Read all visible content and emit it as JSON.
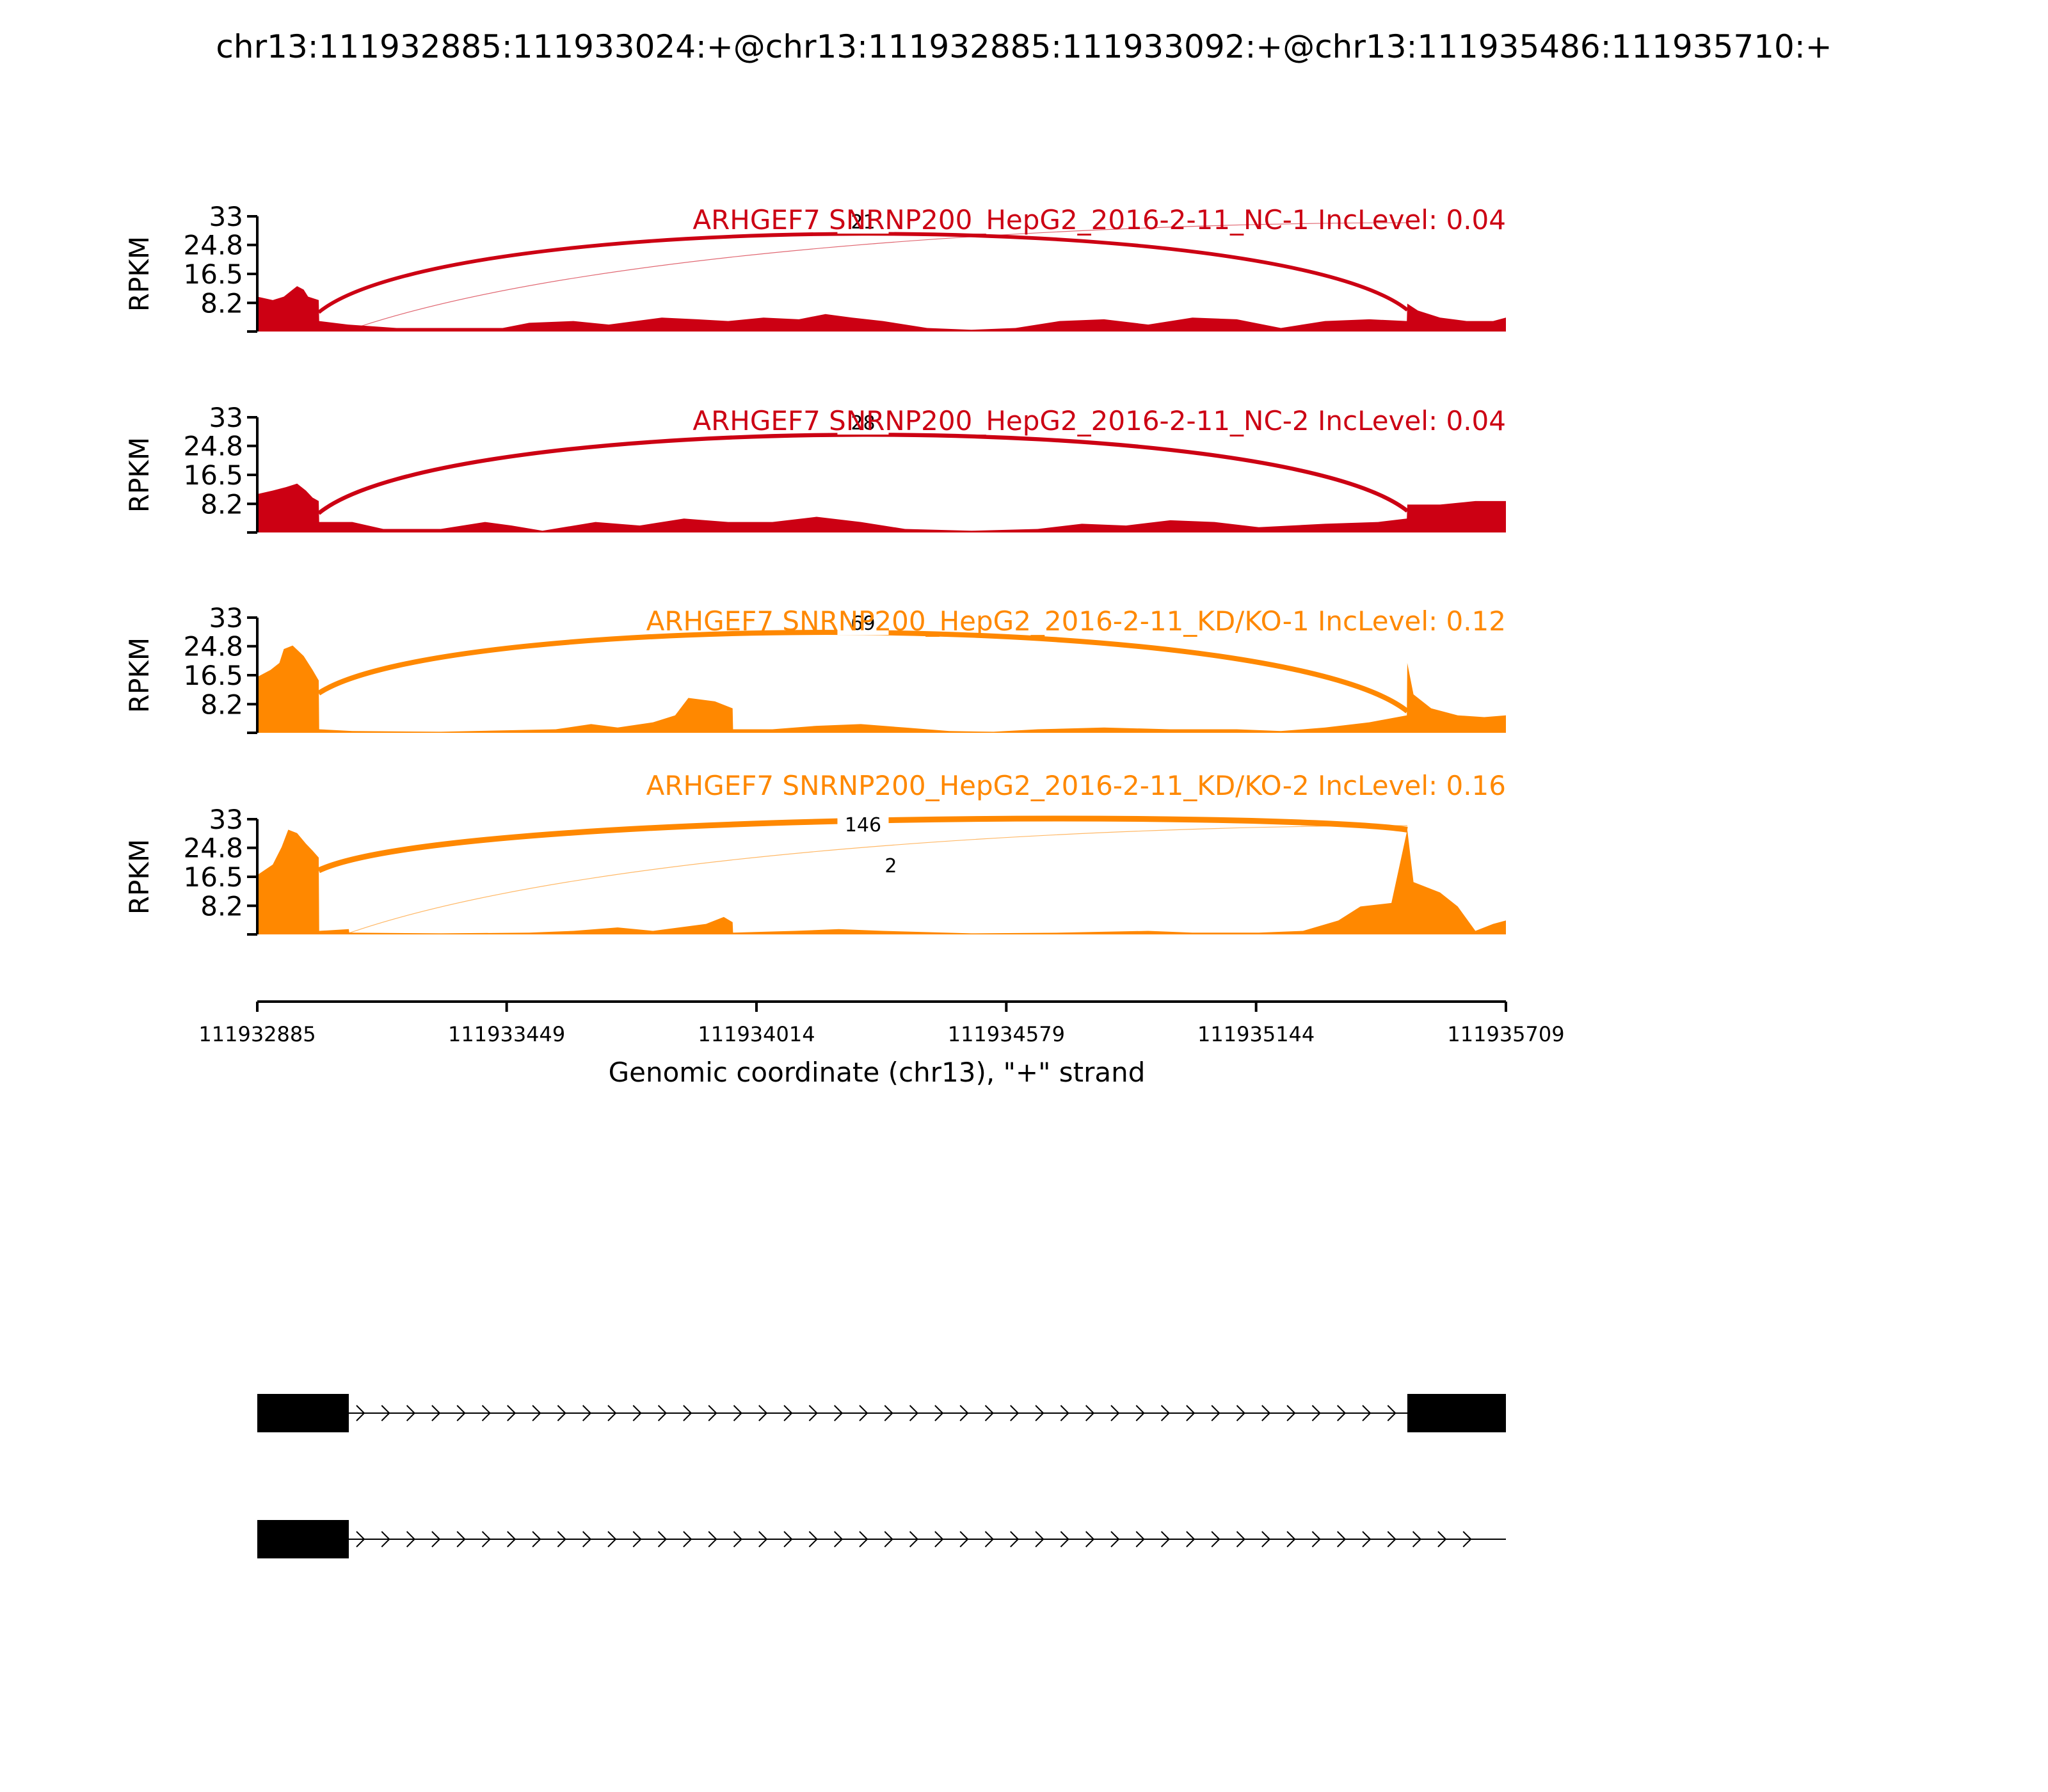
{
  "figure_title": "chr13:111932885:111933024:+@chr13:111932885:111933092:+@chr13:111935486:111935710:+",
  "chart_data": {
    "type": "area",
    "title": "chr13:111932885:111933024:+@chr13:111932885:111933092:+@chr13:111935486:111935710:+",
    "xlabel": "Genomic coordinate (chr13), \"+\" strand",
    "ylabel": "RPKM",
    "xlim": [
      111932885,
      111935709
    ],
    "x_ticks": [
      111932885,
      111933449,
      111934014,
      111934579,
      111935144,
      111935709
    ],
    "ylim": [
      0,
      33
    ],
    "y_ticks": [
      8.2,
      16.5,
      24.8,
      33
    ],
    "y_tick_labels": [
      "8.2",
      "16.5",
      "24.8",
      "33"
    ],
    "grid": false,
    "colors": {
      "NC": "#cc0013",
      "KD": "#ff8800"
    },
    "series": [
      {
        "name": "ARHGEF7 SNRNP200_HepG2_2016-2-11_NC-1 IncLevel: 0.04",
        "color": "#cc0013",
        "coverage": [
          [
            111932885,
            10
          ],
          [
            111932920,
            9
          ],
          [
            111932945,
            10
          ],
          [
            111932965,
            12
          ],
          [
            111932975,
            13
          ],
          [
            111932990,
            12
          ],
          [
            111933000,
            10
          ],
          [
            111933024,
            9
          ],
          [
            111933025,
            3
          ],
          [
            111933090,
            2
          ],
          [
            111933200,
            1
          ],
          [
            111933340,
            1
          ],
          [
            111933440,
            1
          ],
          [
            111933500,
            2.5
          ],
          [
            111933600,
            3
          ],
          [
            111933680,
            2
          ],
          [
            111933800,
            4
          ],
          [
            111933880,
            3.5
          ],
          [
            111933950,
            3
          ],
          [
            111934030,
            4
          ],
          [
            111934110,
            3.5
          ],
          [
            111934170,
            5
          ],
          [
            111934230,
            4
          ],
          [
            111934300,
            3
          ],
          [
            111934400,
            1
          ],
          [
            111934500,
            0.5
          ],
          [
            111934600,
            1
          ],
          [
            111934700,
            3
          ],
          [
            111934800,
            3.5
          ],
          [
            111934900,
            2
          ],
          [
            111935000,
            4
          ],
          [
            111935100,
            3.5
          ],
          [
            111935200,
            1
          ],
          [
            111935300,
            3
          ],
          [
            111935400,
            3.5
          ],
          [
            111935485,
            3
          ],
          [
            111935486,
            8
          ],
          [
            111935510,
            6
          ],
          [
            111935560,
            4
          ],
          [
            111935620,
            3
          ],
          [
            111935680,
            3
          ],
          [
            111935709,
            4
          ]
        ],
        "junctions": [
          {
            "from": 111933024,
            "to": 111935486,
            "count": 21
          },
          {
            "from": 111933092,
            "to": 111935486,
            "count": null
          }
        ]
      },
      {
        "name": "ARHGEF7 SNRNP200_HepG2_2016-2-11_NC-2 IncLevel: 0.04",
        "color": "#cc0013",
        "coverage": [
          [
            111932885,
            11
          ],
          [
            111932920,
            12
          ],
          [
            111932950,
            13
          ],
          [
            111932975,
            14
          ],
          [
            111932995,
            12
          ],
          [
            111933010,
            10
          ],
          [
            111933024,
            9
          ],
          [
            111933025,
            3
          ],
          [
            111933100,
            3
          ],
          [
            111933170,
            1
          ],
          [
            111933300,
            1
          ],
          [
            111933400,
            3
          ],
          [
            111933460,
            2
          ],
          [
            111933530,
            0.5
          ],
          [
            111933650,
            3
          ],
          [
            111933750,
            2
          ],
          [
            111933850,
            4
          ],
          [
            111933950,
            3
          ],
          [
            111934050,
            3
          ],
          [
            111934150,
            4.5
          ],
          [
            111934250,
            3
          ],
          [
            111934350,
            1
          ],
          [
            111934500,
            0.5
          ],
          [
            111934650,
            1
          ],
          [
            111934750,
            2.5
          ],
          [
            111934850,
            2
          ],
          [
            111934950,
            3.5
          ],
          [
            111935050,
            3
          ],
          [
            111935150,
            1.5
          ],
          [
            111935300,
            2.5
          ],
          [
            111935420,
            3
          ],
          [
            111935485,
            4
          ],
          [
            111935486,
            8
          ],
          [
            111935560,
            8
          ],
          [
            111935640,
            9
          ],
          [
            111935709,
            9
          ]
        ],
        "junctions": [
          {
            "from": 111933024,
            "to": 111935486,
            "count": 28
          }
        ]
      },
      {
        "name": "ARHGEF7 SNRNP200_HepG2_2016-2-11_KD/KO-1 IncLevel: 0.12",
        "color": "#ff8800",
        "coverage": [
          [
            111932885,
            16
          ],
          [
            111932915,
            18
          ],
          [
            111932935,
            20
          ],
          [
            111932945,
            24
          ],
          [
            111932965,
            25
          ],
          [
            111932990,
            22
          ],
          [
            111933010,
            18
          ],
          [
            111933024,
            15
          ],
          [
            111933025,
            1
          ],
          [
            111933100,
            0.5
          ],
          [
            111933300,
            0.3
          ],
          [
            111933560,
            1
          ],
          [
            111933640,
            2.5
          ],
          [
            111933700,
            1.5
          ],
          [
            111933780,
            3
          ],
          [
            111933830,
            5
          ],
          [
            111933860,
            10
          ],
          [
            111933920,
            9
          ],
          [
            111933960,
            7
          ],
          [
            111933961,
            1
          ],
          [
            111934050,
            1
          ],
          [
            111934150,
            2
          ],
          [
            111934250,
            2.5
          ],
          [
            111934350,
            1.5
          ],
          [
            111934450,
            0.5
          ],
          [
            111934550,
            0.3
          ],
          [
            111934650,
            1
          ],
          [
            111934800,
            1.5
          ],
          [
            111934950,
            1
          ],
          [
            111935100,
            1
          ],
          [
            111935200,
            0.5
          ],
          [
            111935300,
            1.5
          ],
          [
            111935400,
            3
          ],
          [
            111935485,
            5
          ],
          [
            111935486,
            20
          ],
          [
            111935500,
            11
          ],
          [
            111935540,
            7
          ],
          [
            111935600,
            5
          ],
          [
            111935660,
            4.5
          ],
          [
            111935709,
            5
          ]
        ],
        "junctions": [
          {
            "from": 111933024,
            "to": 111935486,
            "count": 69
          }
        ]
      },
      {
        "name": "ARHGEF7 SNRNP200_HepG2_2016-2-11_KD/KO-2 IncLevel: 0.16",
        "color": "#ff8800",
        "coverage": [
          [
            111932885,
            17
          ],
          [
            111932920,
            20
          ],
          [
            111932940,
            25
          ],
          [
            111932955,
            30
          ],
          [
            111932975,
            29
          ],
          [
            111932995,
            26
          ],
          [
            111933010,
            24
          ],
          [
            111933024,
            22
          ],
          [
            111933025,
            1
          ],
          [
            111933092,
            1.5
          ],
          [
            111933093,
            0.5
          ],
          [
            111933300,
            0.3
          ],
          [
            111933500,
            0.5
          ],
          [
            111933600,
            1
          ],
          [
            111933700,
            2
          ],
          [
            111933780,
            1
          ],
          [
            111933900,
            3
          ],
          [
            111933940,
            5
          ],
          [
            111933960,
            3.5
          ],
          [
            111933961,
            0.5
          ],
          [
            111934100,
            1
          ],
          [
            111934200,
            1.5
          ],
          [
            111934300,
            1
          ],
          [
            111934500,
            0.3
          ],
          [
            111934700,
            0.5
          ],
          [
            111934900,
            1
          ],
          [
            111935000,
            0.5
          ],
          [
            111935150,
            0.5
          ],
          [
            111935250,
            1
          ],
          [
            111935330,
            4
          ],
          [
            111935380,
            8
          ],
          [
            111935450,
            9
          ],
          [
            111935486,
            30
          ],
          [
            111935500,
            15
          ],
          [
            111935560,
            12
          ],
          [
            111935600,
            8
          ],
          [
            111935640,
            1
          ],
          [
            111935680,
            3
          ],
          [
            111935709,
            4
          ]
        ],
        "junctions": [
          {
            "from": 111933024,
            "to": 111935486,
            "count": 146
          },
          {
            "from": 111933092,
            "to": 111935486,
            "count": 2
          }
        ]
      }
    ],
    "transcripts": [
      {
        "exons": [
          [
            111932885,
            111933092
          ],
          [
            111935486,
            111935709
          ]
        ],
        "intron_end": 111935486
      },
      {
        "exons": [
          [
            111932885,
            111933092
          ]
        ],
        "intron_end": 111935660
      }
    ]
  }
}
